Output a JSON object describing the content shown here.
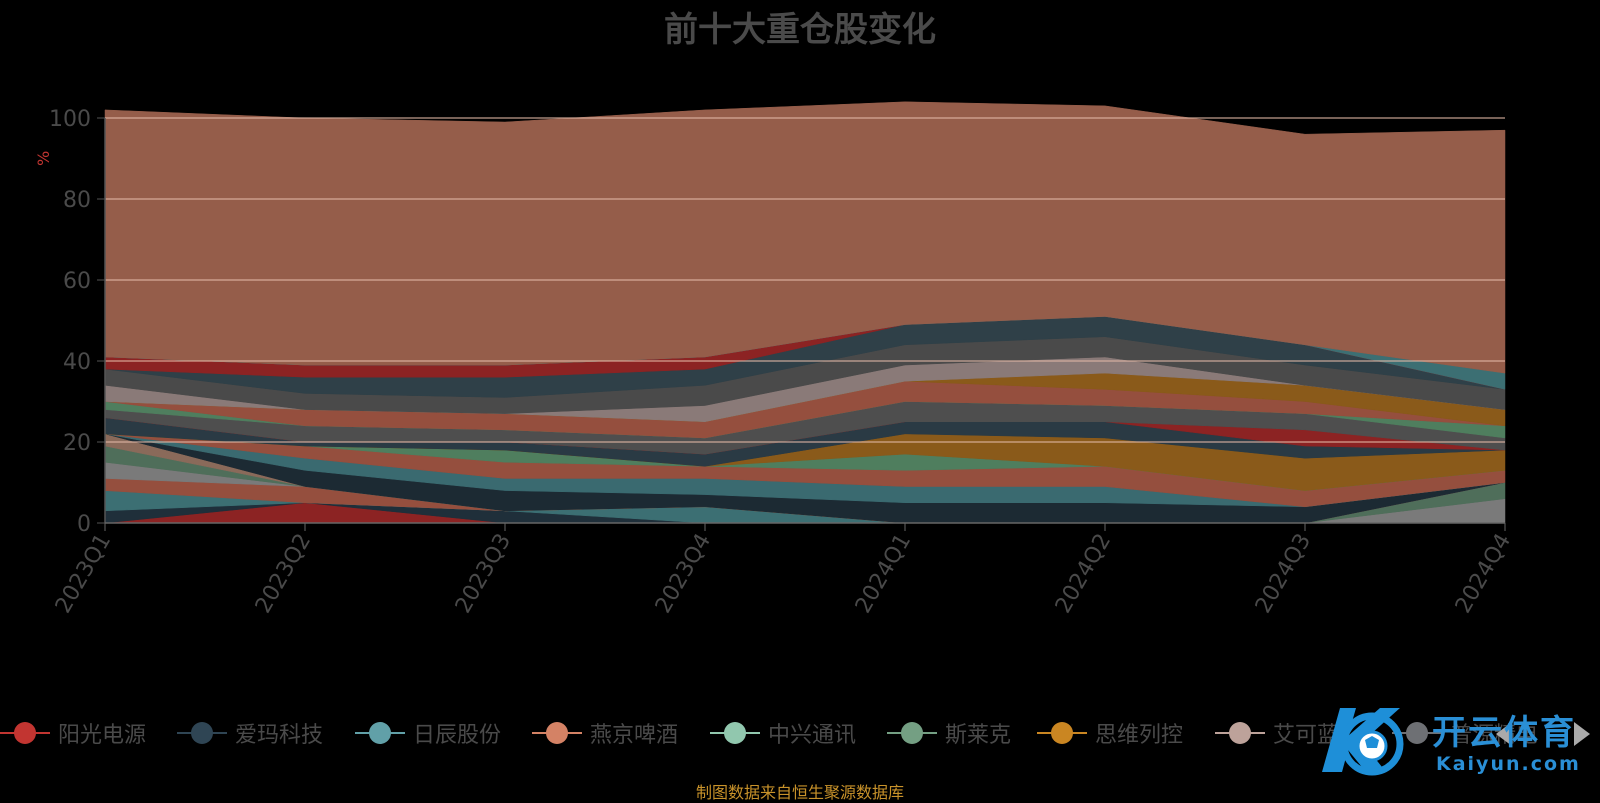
{
  "title": "前十大重仓股变化",
  "source_note": "制图数据来自恒生聚源数据库",
  "logo": {
    "text": "开云体育",
    "sub": "Kaiyun.com"
  },
  "chart_data": {
    "type": "area",
    "title": "前十大重仓股变化",
    "ylabel": "%",
    "ylim": [
      0,
      100
    ],
    "yticks": [
      0,
      20,
      40,
      60,
      80,
      100
    ],
    "grid": true,
    "stacked": true,
    "categories": [
      "2023Q1",
      "2023Q2",
      "2023Q3",
      "2023Q4",
      "2024Q1",
      "2024Q2",
      "2024Q3",
      "2024Q4"
    ],
    "legend_labels": [
      "阳光电源",
      "爱玛科技",
      "日辰股份",
      "燕京啤酒",
      "中兴通讯",
      "斯莱克",
      "思维列控",
      "艾可蓝",
      "普源精电"
    ],
    "series": [
      {
        "color": "#8c2323",
        "values": [
          0,
          5,
          0,
          0,
          0,
          0,
          0,
          0
        ]
      },
      {
        "color": "#1f2f3a",
        "values": [
          3,
          0,
          3,
          0,
          0,
          0,
          0,
          0
        ]
      },
      {
        "color": "#3c6f73",
        "values": [
          5,
          0,
          0,
          4,
          0,
          0,
          0,
          0
        ]
      },
      {
        "color": "#954f3e",
        "values": [
          3,
          4,
          0,
          0,
          0,
          0,
          0,
          0
        ]
      },
      {
        "color": "#7a7a7a",
        "values": [
          4,
          0,
          0,
          0,
          0,
          0,
          0,
          6
        ]
      },
      {
        "color": "#4f6e5a",
        "values": [
          4,
          0,
          0,
          0,
          0,
          0,
          0,
          4
        ]
      },
      {
        "color": "#8a6a5a",
        "values": [
          3,
          0,
          0,
          0,
          0,
          0,
          0,
          0
        ]
      },
      {
        "color": "#1c2a33",
        "values": [
          0,
          4,
          5,
          3,
          5,
          5,
          4,
          0
        ]
      },
      {
        "color": "#3a6a70",
        "values": [
          0,
          3,
          3,
          4,
          4,
          4,
          0,
          0
        ]
      },
      {
        "color": "#954f3e",
        "values": [
          0,
          3,
          4,
          3,
          4,
          5,
          4,
          3
        ]
      },
      {
        "color": "#4f7e5e",
        "values": [
          0,
          0,
          3,
          0,
          4,
          0,
          0,
          0
        ]
      },
      {
        "color": "#8a5a1a",
        "values": [
          0,
          0,
          0,
          0,
          5,
          7,
          8,
          5
        ]
      },
      {
        "color": "#2a3a44",
        "values": [
          4,
          1,
          2,
          3,
          3,
          4,
          3,
          0
        ]
      },
      {
        "color": "#8c2323",
        "values": [
          0,
          0,
          0,
          0,
          0,
          0,
          4,
          0
        ]
      },
      {
        "color": "#4e4e4e",
        "values": [
          2,
          4,
          3,
          4,
          5,
          4,
          4,
          3
        ]
      },
      {
        "color": "#4f7e5e",
        "values": [
          2,
          0,
          0,
          0,
          0,
          0,
          0,
          3
        ]
      },
      {
        "color": "#954f3e",
        "values": [
          0,
          4,
          4,
          4,
          5,
          4,
          3,
          0
        ]
      },
      {
        "color": "#8a5a1a",
        "values": [
          0,
          0,
          0,
          0,
          0,
          4,
          4,
          4
        ]
      },
      {
        "color": "#8a7a78",
        "values": [
          4,
          0,
          0,
          4,
          4,
          4,
          0,
          0
        ]
      },
      {
        "color": "#4a4a4a",
        "values": [
          4,
          4,
          4,
          5,
          5,
          5,
          5,
          5
        ]
      },
      {
        "color": "#2f4048",
        "values": [
          0,
          4,
          5,
          4,
          5,
          5,
          5,
          0
        ]
      },
      {
        "color": "#8c2323",
        "values": [
          3,
          3,
          3,
          3,
          0,
          0,
          0,
          0
        ]
      },
      {
        "color": "#3c6f73",
        "values": [
          0,
          0,
          0,
          0,
          0,
          0,
          0,
          4
        ]
      },
      {
        "color": "#955d4a",
        "values": [
          61,
          61,
          60,
          61,
          55,
          52,
          52,
          60
        ]
      }
    ]
  },
  "legend": [
    {
      "label": "阳光电源",
      "color": "#c23531"
    },
    {
      "label": "爱玛科技",
      "color": "#2f4554"
    },
    {
      "label": "日辰股份",
      "color": "#61a0a8"
    },
    {
      "label": "燕京啤酒",
      "color": "#d48265"
    },
    {
      "label": "中兴通讯",
      "color": "#91c7ae"
    },
    {
      "label": "斯莱克",
      "color": "#749f83"
    },
    {
      "label": "思维列控",
      "color": "#ca8622"
    },
    {
      "label": "艾可蓝",
      "color": "#bda29a"
    },
    {
      "label": "普源精电",
      "color": "#6e7074"
    }
  ]
}
